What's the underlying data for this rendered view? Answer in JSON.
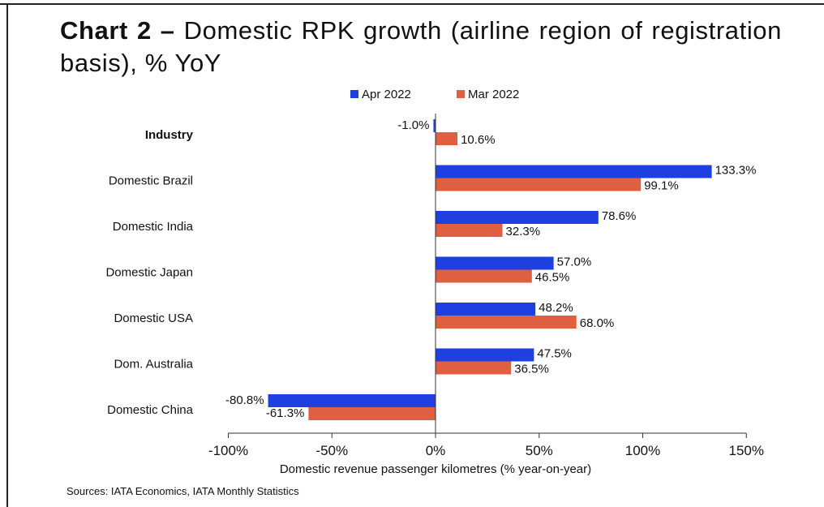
{
  "title": {
    "lead": "Chart 2 –",
    "rest": "Domestic RPK growth (airline region of registration basis), % YoY"
  },
  "source": "Sources: IATA Economics, IATA Monthly Statistics",
  "colors": {
    "apr": "#1f3fe0",
    "mar": "#df5f40"
  },
  "chart_data": {
    "type": "bar",
    "orientation": "horizontal",
    "categories": [
      "Industry",
      "Domestic Brazil",
      "Domestic India",
      "Domestic Japan",
      "Domestic USA",
      "Dom. Australia",
      "Domestic China"
    ],
    "series": [
      {
        "name": "Apr 2022",
        "values": [
          -1.0,
          133.3,
          78.6,
          57.0,
          48.2,
          47.5,
          -80.8
        ],
        "labels": [
          "-1.0%",
          "133.3%",
          "78.6%",
          "57.0%",
          "48.2%",
          "47.5%",
          "-80.8%"
        ]
      },
      {
        "name": "Mar 2022",
        "values": [
          10.6,
          99.1,
          32.3,
          46.5,
          68.0,
          36.5,
          -61.3
        ],
        "labels": [
          "10.6%",
          "99.1%",
          "32.3%",
          "46.5%",
          "68.0%",
          "36.5%",
          "-61.3%"
        ]
      }
    ],
    "xlabel": "Domestic revenue passenger kilometres (% year-on-year)",
    "xlim": [
      -100,
      150
    ],
    "xticks": [
      -100,
      -50,
      0,
      50,
      100,
      150
    ],
    "xtick_labels": [
      "-100%",
      "-50%",
      "0%",
      "50%",
      "100%",
      "150%"
    ],
    "legend_position": "top",
    "grid": false
  }
}
